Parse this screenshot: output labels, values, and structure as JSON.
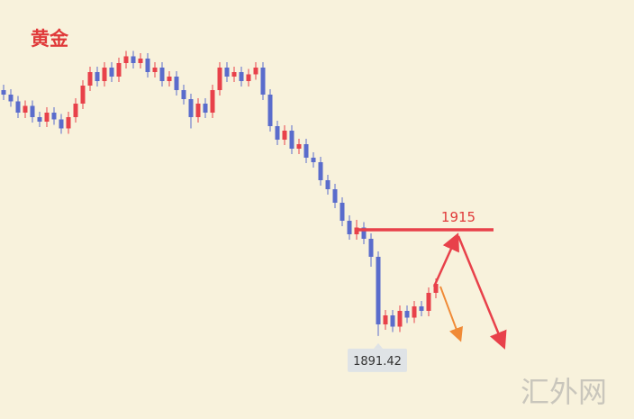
{
  "chart_data": {
    "type": "candlestick",
    "title": "黄金",
    "watermark": "汇外网",
    "up_color": "#e8414a",
    "down_color": "#5a6ccc",
    "level_color": "#e8414a",
    "ylim": [
      1878,
      1962
    ],
    "level": 1915,
    "open": [
      1946,
      1945,
      1943.5,
      1941,
      1942.5,
      1940,
      1939,
      1941,
      1939.5,
      1937.5,
      1940,
      1943,
      1947,
      1950,
      1948,
      1951,
      1949,
      1952,
      1953.5,
      1952,
      1953,
      1950,
      1951,
      1948,
      1949,
      1946,
      1944,
      1940,
      1943,
      1941,
      1946,
      1951,
      1949,
      1950,
      1948,
      1949.5,
      1951,
      1945,
      1938,
      1935,
      1937,
      1933,
      1934,
      1931,
      1930,
      1926,
      1924,
      1921,
      1917,
      1914,
      1915.5,
      1913,
      1909,
      1894,
      1896,
      1893.5,
      1897,
      1895.5,
      1898,
      1897,
      1901
    ],
    "high": [
      1947.2,
      1946.2,
      1944.7,
      1943.7,
      1943.7,
      1941.2,
      1942.2,
      1942.2,
      1940.7,
      1941.2,
      1944.2,
      1948.2,
      1951.2,
      1951.2,
      1952.2,
      1952.2,
      1953.2,
      1954.7,
      1954.7,
      1954.2,
      1954.2,
      1952.2,
      1952.2,
      1950.2,
      1950.2,
      1947.2,
      1945.2,
      1944.2,
      1944.2,
      1947.2,
      1952.2,
      1952.2,
      1951.2,
      1951.2,
      1950.7,
      1952.2,
      1952.2,
      1946.2,
      1939.2,
      1938.2,
      1938.2,
      1935.2,
      1935.2,
      1932.2,
      1931.2,
      1927.2,
      1925.2,
      1922.2,
      1918.2,
      1917.2,
      1916.7,
      1914.2,
      1910.2,
      1897.2,
      1897.2,
      1898.2,
      1898.2,
      1899.2,
      1899.2,
      1902.2,
      1904.2
    ],
    "low": [
      1943.8,
      1942.3,
      1939.8,
      1939.8,
      1938.8,
      1937.8,
      1937.8,
      1938.3,
      1936.3,
      1936.3,
      1938.8,
      1941.8,
      1945.8,
      1946.8,
      1946.8,
      1947.8,
      1947.8,
      1950.8,
      1950.8,
      1950.8,
      1948.8,
      1948.8,
      1946.8,
      1946.8,
      1944.8,
      1942.8,
      1937.5,
      1938.8,
      1939.8,
      1939.8,
      1944.8,
      1947.8,
      1947.8,
      1946.8,
      1946.8,
      1948.3,
      1943.8,
      1936.8,
      1933.8,
      1933.8,
      1931.8,
      1931.8,
      1929.8,
      1928.8,
      1924.8,
      1922.8,
      1919.8,
      1915.8,
      1912.8,
      1912.8,
      1911.8,
      1906.8,
      1891.42,
      1892.8,
      1892.3,
      1892.3,
      1894.3,
      1894.3,
      1895.8,
      1895.8,
      1899.8
    ],
    "close": [
      1945,
      1943.5,
      1941,
      1942.5,
      1940,
      1939,
      1941,
      1939.5,
      1937.5,
      1940,
      1943,
      1947,
      1950,
      1948,
      1951,
      1949,
      1952,
      1953.5,
      1952,
      1953,
      1950,
      1951,
      1948,
      1949,
      1946,
      1944,
      1940,
      1943,
      1941,
      1946,
      1951,
      1949,
      1950,
      1948,
      1949.5,
      1951,
      1945,
      1938,
      1935,
      1937,
      1933,
      1934,
      1931,
      1930,
      1926,
      1924,
      1921,
      1917,
      1914,
      1915.5,
      1913,
      1909,
      1894,
      1896,
      1893.5,
      1897,
      1895.5,
      1898,
      1897,
      1901,
      1903
    ]
  }
}
